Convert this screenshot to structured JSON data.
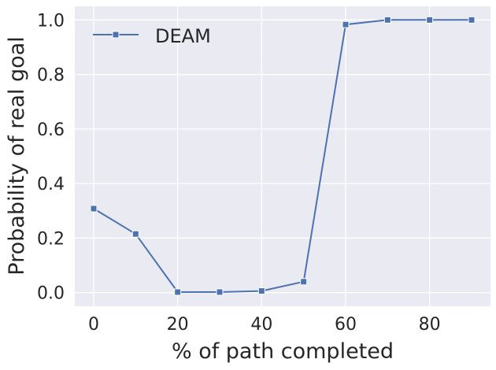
{
  "chart_data": {
    "type": "line",
    "x": [
      0,
      10,
      20,
      30,
      40,
      50,
      60,
      70,
      80,
      90
    ],
    "series": [
      {
        "name": "DEAM",
        "values": [
          0.308,
          0.215,
          0.002,
          0.002,
          0.006,
          0.04,
          0.983,
          1.0,
          1.0,
          1.0
        ],
        "color": "#4c72b0",
        "marker": "square"
      }
    ],
    "xlabel": "% of path completed",
    "ylabel": "Probability of real goal",
    "xticks": [
      "0",
      "20",
      "40",
      "60",
      "80"
    ],
    "yticks": [
      "0.0",
      "0.2",
      "0.4",
      "0.6",
      "0.8",
      "1.0"
    ],
    "xlim": [
      -4.5,
      94.5
    ],
    "ylim": [
      -0.05,
      1.05
    ],
    "grid": true,
    "legend": "upper left",
    "background": "#eaeaf2"
  }
}
